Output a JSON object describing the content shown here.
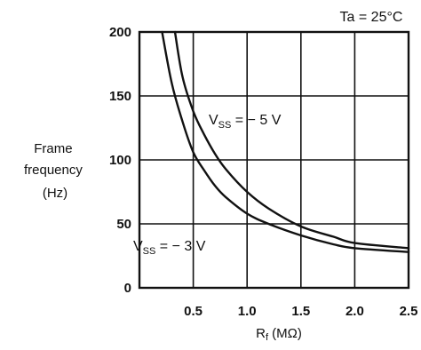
{
  "chart_data": {
    "type": "line",
    "annotation_top": "Ta = 25°C",
    "ylabel_lines": [
      "Frame",
      "frequency",
      "(Hz)"
    ],
    "xlabel": {
      "main": "R",
      "sub": "f",
      "unit": " (MΩ)"
    },
    "xlim": [
      0,
      2.5
    ],
    "ylim": [
      0,
      200
    ],
    "x_ticks": [
      0.5,
      1.0,
      1.5,
      2.0,
      2.5
    ],
    "x_tick_labels": [
      "0.5",
      "1.0",
      "1.5",
      "2.0",
      "2.5"
    ],
    "y_ticks": [
      0,
      50,
      100,
      150,
      200
    ],
    "y_tick_labels": [
      "0",
      "50",
      "100",
      "150",
      "200"
    ],
    "grid": true,
    "series": [
      {
        "label_main": "V",
        "label_sub": "SS",
        "label_rest": " = − 5 V",
        "x": [
          0.33,
          0.4,
          0.5,
          0.6,
          0.7,
          0.8,
          1.0,
          1.2,
          1.5,
          1.8,
          2.0,
          2.5
        ],
        "y": [
          200,
          165,
          138,
          120,
          105,
          93,
          75,
          62,
          48,
          40,
          35,
          31
        ]
      },
      {
        "label_main": "V",
        "label_sub": "SS",
        "label_rest": " = − 3 V",
        "x": [
          0.21,
          0.3,
          0.4,
          0.5,
          0.6,
          0.7,
          0.8,
          1.0,
          1.2,
          1.5,
          1.8,
          2.0,
          2.5
        ],
        "y": [
          200,
          160,
          130,
          106,
          92,
          80,
          71,
          58,
          50,
          41,
          34,
          31,
          28
        ]
      }
    ]
  }
}
